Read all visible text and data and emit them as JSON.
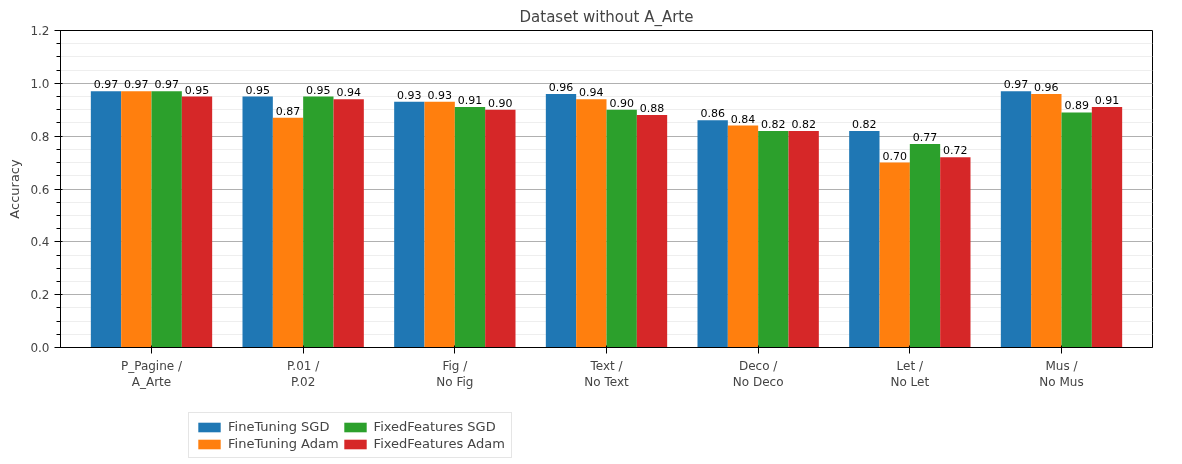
{
  "chart_data": {
    "type": "bar",
    "title": "Dataset without A_Arte",
    "ylabel": "Accuracy",
    "categories": [
      "P_Pagine /\nA_Arte",
      "P.01 /\nP.02",
      "Fig /\nNo Fig",
      "Text /\nNo Text",
      "Deco /\nNo Deco",
      "Let /\nNo Let",
      "Mus /\nNo Mus"
    ],
    "series": [
      {
        "name": "FineTuning SGD",
        "color": "#1f77b4",
        "values": [
          0.97,
          0.95,
          0.93,
          0.96,
          0.86,
          0.82,
          0.97
        ],
        "value_labels": [
          "0.97",
          "0.95",
          "0.93",
          "0.96",
          "0.86",
          "0.82",
          "0.97"
        ]
      },
      {
        "name": "FineTuning Adam",
        "color": "#ff7f0e",
        "values": [
          0.97,
          0.87,
          0.93,
          0.94,
          0.84,
          0.7,
          0.96
        ],
        "value_labels": [
          "0.97",
          "0.87",
          "0.93",
          "0.94",
          "0.84",
          "0.70",
          "0.96"
        ]
      },
      {
        "name": "FixedFeatures SGD",
        "color": "#2ca02c",
        "values": [
          0.97,
          0.95,
          0.91,
          0.9,
          0.82,
          0.77,
          0.89
        ],
        "value_labels": [
          "0.97",
          "0.95",
          "0.91",
          "0.90",
          "0.82",
          "0.77",
          "0.89"
        ]
      },
      {
        "name": "FixedFeatures Adam",
        "color": "#d62728",
        "values": [
          0.95,
          0.94,
          0.9,
          0.88,
          0.82,
          0.72,
          0.91
        ],
        "value_labels": [
          "0.95",
          "0.94",
          "0.90",
          "0.88",
          "0.82",
          "0.72",
          "0.91"
        ]
      }
    ],
    "ylim": [
      0,
      1.2
    ],
    "yticks": [
      {
        "value": 0,
        "label": "0.0"
      },
      {
        "value": 0.2,
        "label": "0.2"
      },
      {
        "value": 0.4,
        "label": "0.4"
      },
      {
        "value": 0.6,
        "label": "0.6"
      },
      {
        "value": 0.8,
        "label": "0.8"
      },
      {
        "value": 1.0,
        "label": "1.0"
      },
      {
        "value": 1.2,
        "label": "1.2"
      }
    ],
    "grid": "y",
    "legend": "bottom"
  }
}
